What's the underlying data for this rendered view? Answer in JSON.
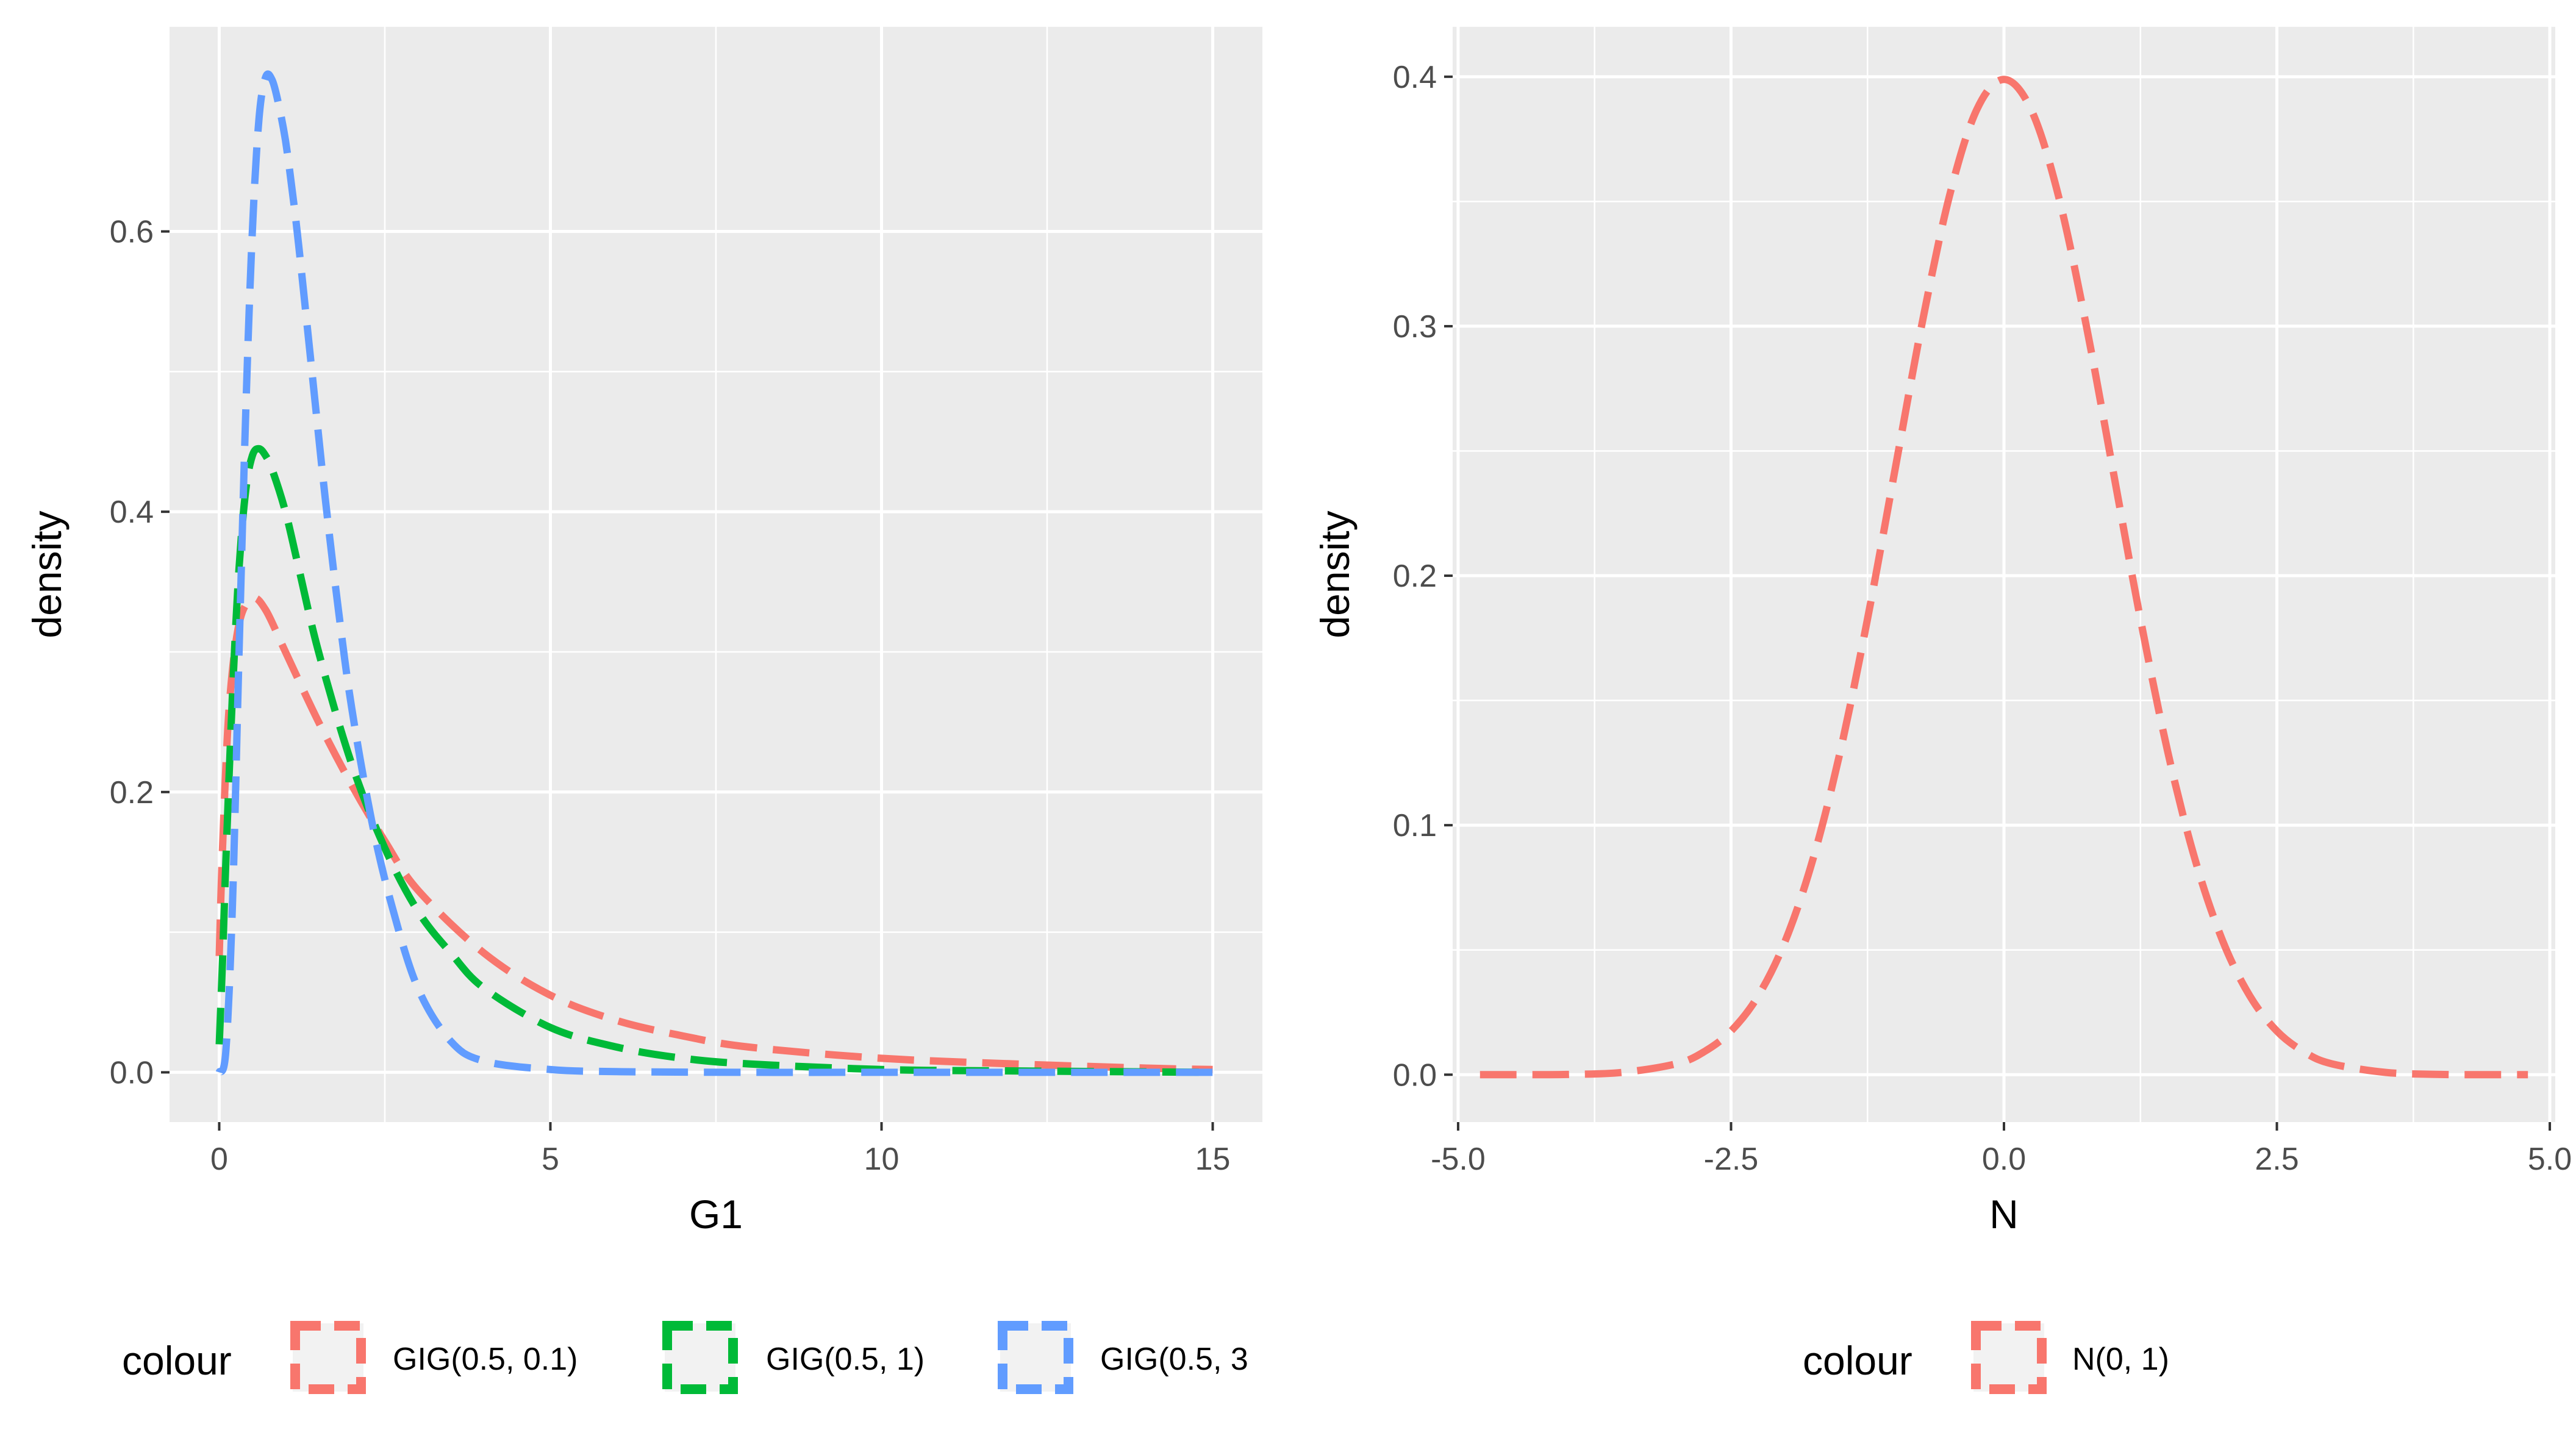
{
  "chart_data": [
    {
      "type": "line",
      "xlabel": "G1",
      "ylabel": "density",
      "xlim": [
        -0.75,
        15.75
      ],
      "ylim": [
        -0.0355,
        0.746
      ],
      "x_ticks": [
        0,
        5,
        10,
        15
      ],
      "x_tick_labels": [
        "0",
        "5",
        "10",
        "15"
      ],
      "y_ticks": [
        0.0,
        0.2,
        0.4,
        0.6
      ],
      "y_tick_labels": [
        "0.0",
        "0.2",
        "0.4",
        "0.6"
      ],
      "grid": true,
      "legend": {
        "position": "bottom",
        "title": "colour",
        "entries": [
          "GIG(0.5, 0.1)",
          "GIG(0.5, 1)",
          "GIG(0.5, 3"
        ]
      },
      "series": [
        {
          "name": "GIG(0.5, 0.1)",
          "color": "#F8766D",
          "x": [
            0,
            0.05,
            0.15,
            0.3,
            0.5,
            0.7,
            1,
            1.5,
            2,
            2.5,
            3,
            4,
            5,
            6,
            7,
            8,
            10,
            12,
            14,
            15
          ],
          "y": [
            0.083,
            0.16,
            0.26,
            0.32,
            0.338,
            0.33,
            0.3,
            0.25,
            0.205,
            0.165,
            0.13,
            0.085,
            0.055,
            0.037,
            0.026,
            0.018,
            0.01,
            0.006,
            0.003,
            0.002
          ]
        },
        {
          "name": "GIG(0.5, 1)",
          "color": "#00BA38",
          "x": [
            0,
            0.05,
            0.1,
            0.2,
            0.3,
            0.4,
            0.5,
            0.6,
            0.7,
            0.8,
            1,
            1.2,
            1.5,
            2,
            2.5,
            3,
            3.5,
            4,
            5,
            6,
            7,
            8,
            10,
            12,
            15
          ],
          "y": [
            0.02,
            0.08,
            0.15,
            0.27,
            0.36,
            0.415,
            0.44,
            0.445,
            0.44,
            0.43,
            0.4,
            0.36,
            0.3,
            0.22,
            0.16,
            0.115,
            0.085,
            0.06,
            0.032,
            0.018,
            0.01,
            0.006,
            0.002,
            0.001,
            0.0
          ]
        },
        {
          "name": "GIG(0.5, 3",
          "color": "#619CFF",
          "x": [
            0,
            0.1,
            0.2,
            0.3,
            0.4,
            0.5,
            0.6,
            0.7,
            0.8,
            0.9,
            1.0,
            1.1,
            1.2,
            1.4,
            1.6,
            1.8,
            2.0,
            2.3,
            2.6,
            3.0,
            3.5,
            4.0,
            5.0,
            6.0,
            8.0,
            10.0,
            15.0
          ],
          "y": [
            0.0,
            0.015,
            0.12,
            0.3,
            0.47,
            0.6,
            0.68,
            0.71,
            0.708,
            0.69,
            0.665,
            0.63,
            0.59,
            0.5,
            0.41,
            0.33,
            0.26,
            0.18,
            0.12,
            0.06,
            0.022,
            0.008,
            0.002,
            0.0005,
            0.0,
            0.0,
            0.0
          ]
        }
      ]
    },
    {
      "type": "line",
      "xlabel": "N",
      "ylabel": "density",
      "xlim": [
        -5.05,
        5.05
      ],
      "ylim": [
        -0.019,
        0.42
      ],
      "x_ticks": [
        -5.0,
        -2.5,
        0.0,
        2.5,
        5.0
      ],
      "x_tick_labels": [
        "-5.0",
        "-2.5",
        "0.0",
        "2.5",
        "5.0"
      ],
      "y_ticks": [
        0.0,
        0.1,
        0.2,
        0.3,
        0.4
      ],
      "y_tick_labels": [
        "0.0",
        "0.1",
        "0.2",
        "0.3",
        "0.4"
      ],
      "grid": true,
      "legend": {
        "position": "bottom",
        "title": "colour",
        "entries": [
          "N(0, 1)"
        ]
      },
      "series": [
        {
          "name": "N(0, 1)",
          "color": "#F8766D",
          "x": [
            -4.8,
            -4.5,
            -4.0,
            -3.5,
            -3.0,
            -2.75,
            -2.5,
            -2.25,
            -2.0,
            -1.75,
            -1.5,
            -1.25,
            -1.0,
            -0.75,
            -0.5,
            -0.25,
            0.0,
            0.25,
            0.5,
            0.75,
            1.0,
            1.25,
            1.5,
            1.75,
            2.0,
            2.25,
            2.5,
            2.75,
            3.0,
            3.5,
            4.0,
            4.5,
            4.8
          ],
          "y": [
            0.0,
            0.0,
            0.0001,
            0.0009,
            0.0044,
            0.0091,
            0.0175,
            0.0317,
            0.054,
            0.0863,
            0.1295,
            0.1826,
            0.242,
            0.3011,
            0.3521,
            0.3867,
            0.3989,
            0.3867,
            0.3521,
            0.3011,
            0.242,
            0.1826,
            0.1295,
            0.0863,
            0.054,
            0.0317,
            0.0175,
            0.0091,
            0.0044,
            0.0009,
            0.0001,
            0.0,
            0.0
          ]
        }
      ]
    }
  ]
}
